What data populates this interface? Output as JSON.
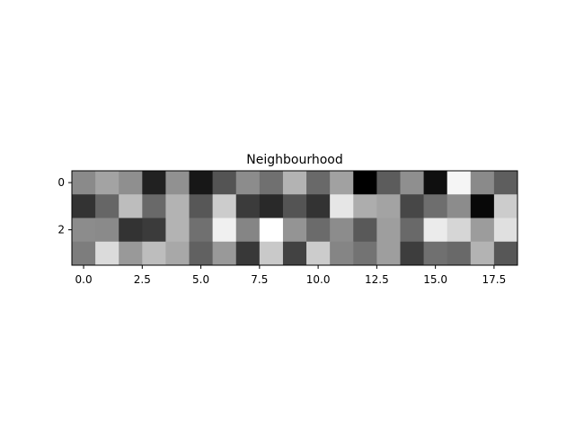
{
  "chart_data": {
    "type": "heatmap",
    "title": "Neighbourhood",
    "xlabel": "",
    "ylabel": "",
    "colormap": "gray",
    "rows": 4,
    "cols": 19,
    "x_ticks": [
      "0.0",
      "2.5",
      "5.0",
      "7.5",
      "10.0",
      "12.5",
      "15.0",
      "17.5"
    ],
    "x_tick_values": [
      0,
      2.5,
      5,
      7.5,
      10,
      12.5,
      15,
      17.5
    ],
    "y_ticks": [
      "0",
      "2"
    ],
    "y_tick_values": [
      0,
      2
    ],
    "xlim": [
      -0.5,
      18.5
    ],
    "ylim": [
      3.5,
      -0.5
    ],
    "grid": false,
    "values": [
      [
        0.54,
        0.64,
        0.56,
        0.13,
        0.57,
        0.09,
        0.33,
        0.55,
        0.44,
        0.7,
        0.41,
        0.63,
        0.0,
        0.36,
        0.56,
        0.06,
        0.96,
        0.54,
        0.37
      ],
      [
        0.2,
        0.4,
        0.74,
        0.41,
        0.7,
        0.34,
        0.8,
        0.23,
        0.16,
        0.33,
        0.2,
        0.9,
        0.68,
        0.64,
        0.28,
        0.43,
        0.55,
        0.03,
        0.8
      ],
      [
        0.55,
        0.54,
        0.2,
        0.23,
        0.7,
        0.44,
        0.94,
        0.52,
        1.0,
        0.58,
        0.42,
        0.55,
        0.35,
        0.62,
        0.41,
        0.92,
        0.84,
        0.61,
        0.88
      ],
      [
        0.49,
        0.86,
        0.6,
        0.74,
        0.66,
        0.38,
        0.6,
        0.22,
        0.79,
        0.26,
        0.8,
        0.52,
        0.45,
        0.62,
        0.24,
        0.44,
        0.41,
        0.7,
        0.34
      ]
    ]
  }
}
